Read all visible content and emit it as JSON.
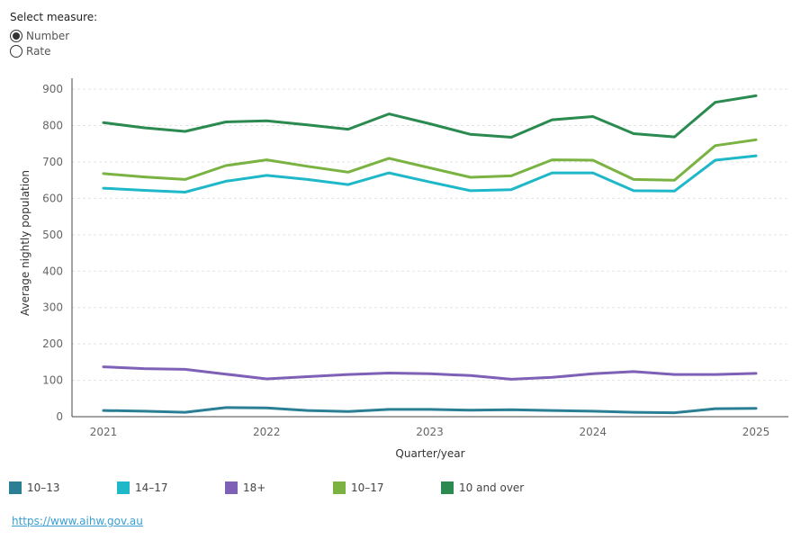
{
  "measure": {
    "title": "Select measure:",
    "options": [
      {
        "label": "Number",
        "selected": true
      },
      {
        "label": "Rate",
        "selected": false
      }
    ]
  },
  "chart_data": {
    "type": "line",
    "xlabel": "Quarter/year",
    "ylabel": "Average nightly population",
    "ylim": [
      0,
      930
    ],
    "yticks": [
      0,
      100,
      200,
      300,
      400,
      500,
      600,
      700,
      800,
      900
    ],
    "xticks": [
      "2021",
      "2022",
      "2023",
      "2024",
      "2025"
    ],
    "x": [
      "2021 Q1",
      "2021 Q2",
      "2021 Q3",
      "2021 Q4",
      "2022 Q1",
      "2022 Q2",
      "2022 Q3",
      "2022 Q4",
      "2023 Q1",
      "2023 Q2",
      "2023 Q3",
      "2023 Q4",
      "2024 Q1",
      "2024 Q2",
      "2024 Q3",
      "2024 Q4",
      "2025 Q1"
    ],
    "grid": "horizontal",
    "legend_position": "bottom",
    "series": [
      {
        "name": "10–13",
        "color": "#2a7f95",
        "values": [
          17,
          15,
          12,
          25,
          24,
          17,
          14,
          20,
          20,
          18,
          19,
          17,
          15,
          12,
          11,
          22,
          23
        ]
      },
      {
        "name": "14–17",
        "color": "#1fb8c8",
        "values": [
          628,
          622,
          617,
          647,
          663,
          652,
          638,
          670,
          645,
          621,
          624,
          670,
          670,
          621,
          620,
          705,
          717
        ]
      },
      {
        "name": "18+",
        "color": "#7e60b7",
        "values": [
          137,
          132,
          130,
          117,
          104,
          110,
          116,
          120,
          118,
          113,
          103,
          108,
          118,
          124,
          116,
          116,
          119
        ]
      },
      {
        "name": "10–17",
        "color": "#7ab342",
        "values": [
          668,
          659,
          652,
          690,
          706,
          688,
          672,
          710,
          684,
          658,
          662,
          706,
          705,
          652,
          650,
          745,
          761
        ]
      },
      {
        "name": "10 and over",
        "color": "#2a8a50",
        "values": [
          808,
          794,
          784,
          810,
          813,
          802,
          790,
          832,
          805,
          776,
          768,
          816,
          825,
          778,
          769,
          864,
          882
        ]
      }
    ]
  },
  "footer": {
    "link": "https://www.aihw.gov.au"
  }
}
